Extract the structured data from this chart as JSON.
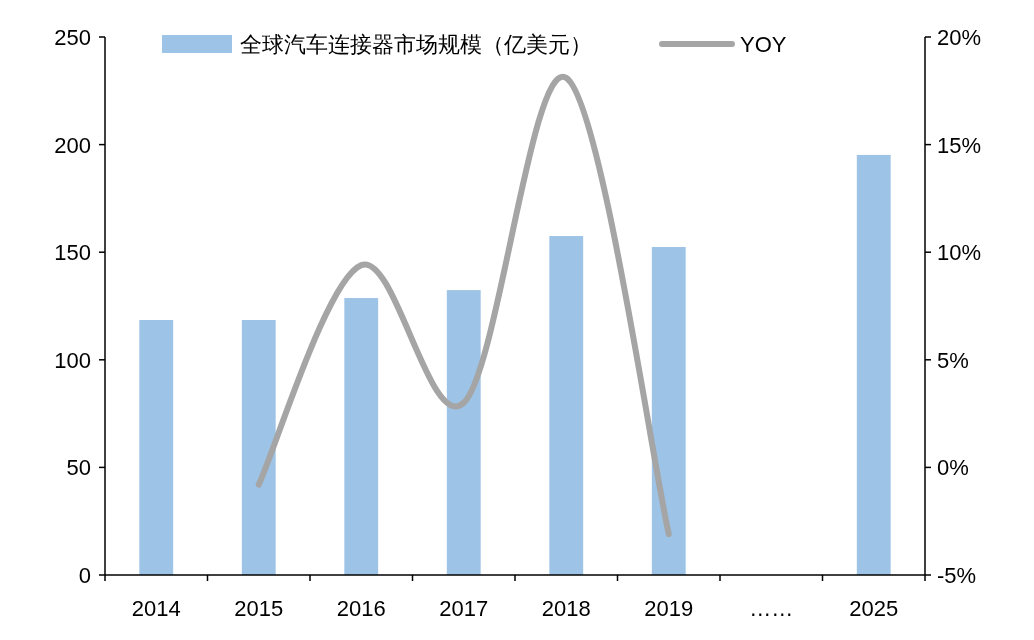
{
  "chart_data": {
    "type": "bar",
    "categories": [
      "2014",
      "2015",
      "2016",
      "2017",
      "2018",
      "2019",
      "……",
      "2025"
    ],
    "series": [
      {
        "name": "全球汽车连接器市场规模（亿美元）",
        "color": "#9dc3e6",
        "values": [
          118.5,
          118.5,
          128.7,
          132.4,
          157.5,
          152.4,
          null,
          195.2
        ]
      },
      {
        "name": "YOY",
        "type": "line",
        "axis": "y2",
        "color": "#a5a5a5",
        "values": [
          null,
          -0.8,
          9.4,
          3.0,
          18.1,
          -3.1,
          null,
          null
        ]
      }
    ],
    "ylim": [
      0,
      250
    ],
    "yticks": [
      0,
      50,
      100,
      150,
      200,
      250
    ],
    "y2lim": [
      -5,
      20
    ],
    "y2ticks": [
      {
        "value": -5,
        "label": "-5%"
      },
      {
        "value": 0,
        "label": "0%"
      },
      {
        "value": 5,
        "label": "5%"
      },
      {
        "value": 10,
        "label": "10%"
      },
      {
        "value": 15,
        "label": "15%"
      },
      {
        "value": 20,
        "label": "20%"
      }
    ],
    "legend": "top",
    "grid": false
  }
}
